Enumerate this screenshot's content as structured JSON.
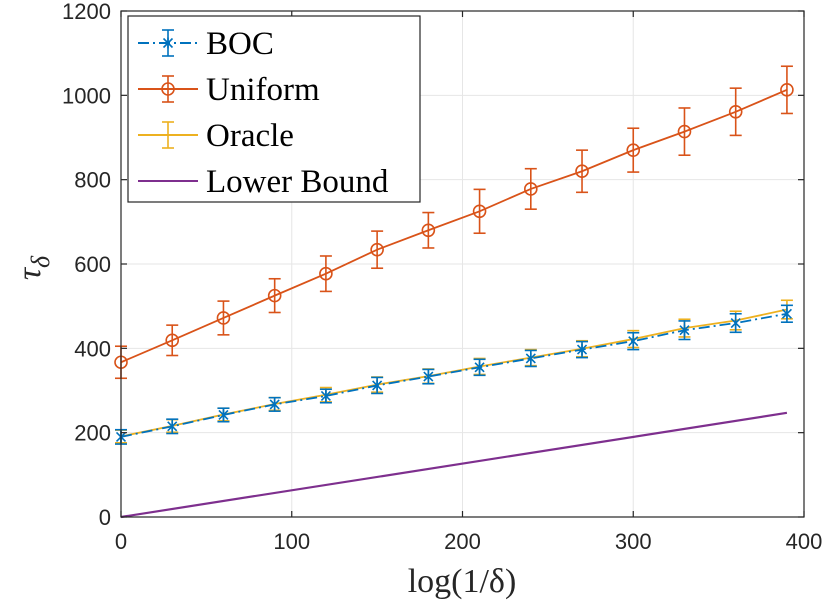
{
  "chart_data": {
    "type": "line",
    "title": "",
    "xlabel": "log(1/δ)",
    "ylabel": "τ",
    "ylabel_subscript": "δ",
    "xlim": [
      0,
      400
    ],
    "ylim": [
      0,
      1200
    ],
    "xticks": [
      0,
      100,
      200,
      300,
      400
    ],
    "yticks": [
      0,
      200,
      400,
      600,
      800,
      1000,
      1200
    ],
    "xtick_labels": [
      "0",
      "100",
      "200",
      "300",
      "400"
    ],
    "ytick_labels": [
      "0",
      "200",
      "400",
      "600",
      "800",
      "1000",
      "1200"
    ],
    "grid": true,
    "legend_position": "top-left",
    "series": [
      {
        "name": "BOC",
        "color": "#0072BD",
        "marker": "x",
        "line_style": "dashdot",
        "x": [
          0,
          30,
          60,
          90,
          120,
          150,
          180,
          210,
          240,
          270,
          300,
          330,
          360,
          390
        ],
        "y": [
          190,
          215,
          242,
          267,
          287,
          312,
          333,
          355,
          376,
          397,
          417,
          443,
          460,
          482
        ],
        "err": [
          17,
          17,
          16,
          16,
          16,
          19,
          17,
          19,
          19,
          19,
          20,
          22,
          22,
          20
        ]
      },
      {
        "name": "Uniform",
        "color": "#D95319",
        "marker": "o",
        "line_style": "solid",
        "x": [
          0,
          30,
          60,
          90,
          120,
          150,
          180,
          210,
          240,
          270,
          300,
          330,
          360,
          390
        ],
        "y": [
          367,
          419,
          472,
          525,
          577,
          634,
          680,
          725,
          778,
          820,
          870,
          914,
          961,
          1013
        ],
        "err": [
          38,
          36,
          40,
          40,
          42,
          44,
          42,
          52,
          48,
          50,
          52,
          56,
          56,
          56
        ]
      },
      {
        "name": "Oracle",
        "color": "#EDB120",
        "marker": "none",
        "line_style": "solid",
        "x": [
          0,
          30,
          60,
          90,
          120,
          150,
          180,
          210,
          240,
          270,
          300,
          330,
          360,
          390
        ],
        "y": [
          191,
          216,
          243,
          268,
          290,
          314,
          334,
          357,
          378,
          399,
          422,
          448,
          466,
          492
        ],
        "err": [
          15,
          15,
          15,
          15,
          17,
          18,
          17,
          19,
          19,
          19,
          20,
          21,
          22,
          22
        ]
      },
      {
        "name": "Lower Bound",
        "color": "#7E2F8E",
        "marker": "none",
        "line_style": "solid",
        "x": [
          0,
          390
        ],
        "y": [
          0,
          247
        ],
        "err": []
      }
    ]
  }
}
